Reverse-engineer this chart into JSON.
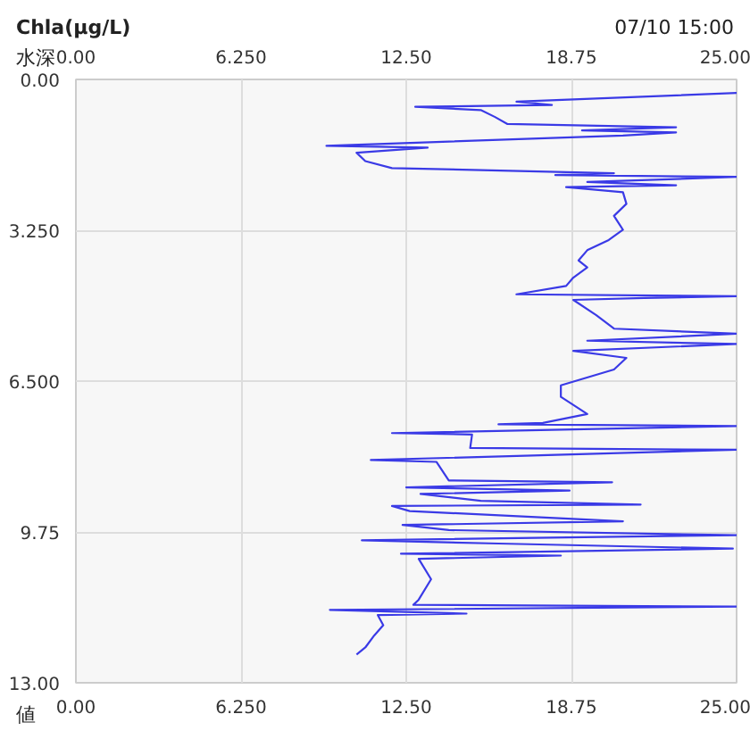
{
  "chart_data": {
    "type": "line",
    "title": "Chla(μg/L)",
    "subtitle": "07/10 15:00",
    "ylabel": "水深",
    "xlabel": "値",
    "x": [
      25.0,
      16.67,
      18.01,
      12.84,
      15.32,
      15.86,
      16.33,
      22.71,
      19.15,
      22.71,
      20.7,
      9.48,
      13.31,
      10.62,
      10.95,
      11.96,
      20.36,
      18.14,
      25.0,
      19.35,
      22.71,
      18.55,
      20.7,
      20.83,
      20.36,
      20.7,
      20.16,
      19.35,
      19.02,
      19.35,
      18.82,
      18.55,
      16.67,
      25.0,
      21.5,
      18.82,
      19.69,
      20.36,
      25.0,
      19.35,
      25.0,
      18.82,
      20.83,
      20.36,
      18.35,
      18.35,
      19.35,
      17.67,
      15.99,
      25.0,
      11.96,
      14.99,
      14.92,
      25.0,
      11.16,
      13.64,
      14.11,
      20.29,
      12.5,
      18.68,
      13.04,
      15.32,
      21.37,
      11.96,
      12.63,
      20.7,
      12.36,
      14.11,
      25.0,
      10.82,
      15.99,
      24.86,
      12.3,
      18.35,
      12.97,
      13.44,
      12.97,
      12.77,
      25.0,
      9.61,
      14.78,
      11.42,
      11.63,
      11.29,
      10.95,
      10.62
    ],
    "values": [
      0.29,
      0.48,
      0.55,
      0.59,
      0.66,
      0.81,
      0.96,
      1.03,
      1.1,
      1.14,
      1.21,
      1.43,
      1.47,
      1.58,
      1.76,
      1.91,
      2.02,
      2.06,
      2.1,
      2.21,
      2.28,
      2.32,
      2.43,
      2.68,
      2.94,
      3.24,
      3.46,
      3.68,
      3.9,
      4.05,
      4.27,
      4.45,
      4.63,
      4.67,
      4.71,
      4.75,
      5.08,
      5.37,
      5.48,
      5.63,
      5.7,
      5.85,
      6.0,
      6.25,
      6.59,
      6.84,
      7.21,
      7.4,
      7.43,
      7.47,
      7.62,
      7.65,
      7.94,
      7.98,
      8.2,
      8.24,
      8.64,
      8.68,
      8.79,
      8.86,
      8.93,
      9.08,
      9.16,
      9.19,
      9.3,
      9.52,
      9.6,
      9.71,
      9.82,
      9.93,
      10.0,
      10.11,
      10.22,
      10.26,
      10.33,
      10.77,
      11.21,
      11.32,
      11.36,
      11.43,
      11.51,
      11.54,
      11.76,
      11.98,
      12.24,
      12.39
    ],
    "color": "#3a3ae6",
    "line_style": "solid",
    "grid": true,
    "xlim": [
      0,
      25
    ],
    "xticks": [
      {
        "value": 0,
        "label": "0.00"
      },
      {
        "value": 6.25,
        "label": "6.250"
      },
      {
        "value": 12.5,
        "label": "12.50"
      },
      {
        "value": 18.75,
        "label": "18.75"
      },
      {
        "value": 25,
        "label": "25.00"
      }
    ],
    "x2lim": [
      0,
      25
    ],
    "x2ticks": [
      {
        "value": 0,
        "label": "0.00"
      },
      {
        "value": 6.25,
        "label": "6.250"
      },
      {
        "value": 12.5,
        "label": "12.50"
      },
      {
        "value": 18.75,
        "label": "18.75"
      },
      {
        "value": 25,
        "label": "25.00"
      }
    ],
    "ylim": [
      13,
      0
    ],
    "yticks": [
      {
        "value": 0,
        "label": "0.00"
      },
      {
        "value": 3.25,
        "label": "3.250"
      },
      {
        "value": 6.5,
        "label": "6.500"
      },
      {
        "value": 9.75,
        "label": "9.75"
      },
      {
        "value": 13,
        "label": "13.00"
      }
    ]
  }
}
